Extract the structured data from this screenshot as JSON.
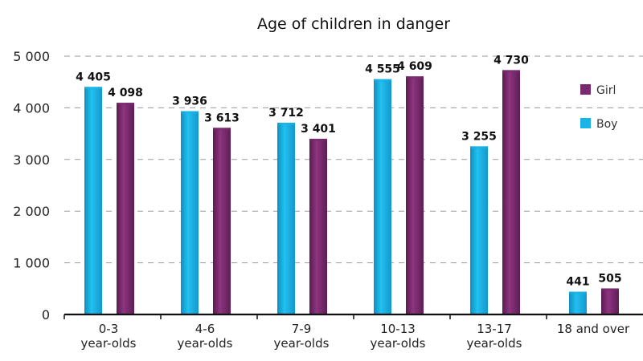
{
  "chart_data": {
    "type": "bar",
    "title": "Age of children in danger",
    "categories": [
      [
        "0-3",
        "year-olds"
      ],
      [
        "4-6",
        "year-olds"
      ],
      [
        "7-9",
        "year-olds"
      ],
      [
        "10-13",
        "year-olds"
      ],
      [
        "13-17",
        "year-olds"
      ],
      [
        "18 and over"
      ]
    ],
    "series": [
      {
        "name": "Boy",
        "color": "#1ab3e6",
        "values": [
          4405,
          3936,
          3712,
          4555,
          3255,
          441
        ]
      },
      {
        "name": "Girl",
        "color": "#7a2a6e",
        "values": [
          4098,
          3613,
          3401,
          4609,
          4730,
          505
        ]
      }
    ],
    "value_labels": {
      "Boy": [
        "4 405",
        "3 936",
        "3 712",
        "4 555",
        "3 255",
        "441"
      ],
      "Girl": [
        "4 098",
        "3 613",
        "3 401",
        "4 609",
        "4 730",
        "505"
      ]
    },
    "ylim": [
      0,
      5000
    ],
    "yticks": [
      0,
      1000,
      2000,
      3000,
      4000,
      5000
    ],
    "ytick_labels": [
      "0",
      "1 000",
      "2 000",
      "3 000",
      "4 000",
      "5 000"
    ],
    "grid": true,
    "legend": {
      "position": "right",
      "order": [
        "Girl",
        "Boy"
      ]
    },
    "xlabel": "",
    "ylabel": ""
  }
}
